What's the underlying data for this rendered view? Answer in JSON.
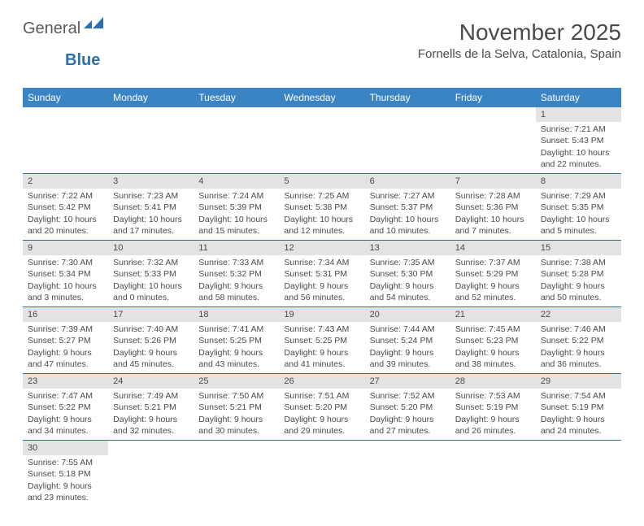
{
  "logo": {
    "text1": "General",
    "text2": "Blue"
  },
  "title": "November 2025",
  "subtitle": "Fornells de la Selva, Catalonia, Spain",
  "colors": {
    "header_bg": "#3b84c4",
    "header_text": "#ffffff",
    "border": "#2c6fb0",
    "daynum_bg": "#e3e3e3",
    "text": "#4a4a4a"
  },
  "weekdays": [
    "Sunday",
    "Monday",
    "Tuesday",
    "Wednesday",
    "Thursday",
    "Friday",
    "Saturday"
  ],
  "weeks": [
    [
      null,
      null,
      null,
      null,
      null,
      null,
      {
        "n": "1",
        "sr": "Sunrise: 7:21 AM",
        "ss": "Sunset: 5:43 PM",
        "dl": "Daylight: 10 hours and 22 minutes."
      }
    ],
    [
      {
        "n": "2",
        "sr": "Sunrise: 7:22 AM",
        "ss": "Sunset: 5:42 PM",
        "dl": "Daylight: 10 hours and 20 minutes."
      },
      {
        "n": "3",
        "sr": "Sunrise: 7:23 AM",
        "ss": "Sunset: 5:41 PM",
        "dl": "Daylight: 10 hours and 17 minutes."
      },
      {
        "n": "4",
        "sr": "Sunrise: 7:24 AM",
        "ss": "Sunset: 5:39 PM",
        "dl": "Daylight: 10 hours and 15 minutes."
      },
      {
        "n": "5",
        "sr": "Sunrise: 7:25 AM",
        "ss": "Sunset: 5:38 PM",
        "dl": "Daylight: 10 hours and 12 minutes."
      },
      {
        "n": "6",
        "sr": "Sunrise: 7:27 AM",
        "ss": "Sunset: 5:37 PM",
        "dl": "Daylight: 10 hours and 10 minutes."
      },
      {
        "n": "7",
        "sr": "Sunrise: 7:28 AM",
        "ss": "Sunset: 5:36 PM",
        "dl": "Daylight: 10 hours and 7 minutes."
      },
      {
        "n": "8",
        "sr": "Sunrise: 7:29 AM",
        "ss": "Sunset: 5:35 PM",
        "dl": "Daylight: 10 hours and 5 minutes."
      }
    ],
    [
      {
        "n": "9",
        "sr": "Sunrise: 7:30 AM",
        "ss": "Sunset: 5:34 PM",
        "dl": "Daylight: 10 hours and 3 minutes."
      },
      {
        "n": "10",
        "sr": "Sunrise: 7:32 AM",
        "ss": "Sunset: 5:33 PM",
        "dl": "Daylight: 10 hours and 0 minutes."
      },
      {
        "n": "11",
        "sr": "Sunrise: 7:33 AM",
        "ss": "Sunset: 5:32 PM",
        "dl": "Daylight: 9 hours and 58 minutes."
      },
      {
        "n": "12",
        "sr": "Sunrise: 7:34 AM",
        "ss": "Sunset: 5:31 PM",
        "dl": "Daylight: 9 hours and 56 minutes."
      },
      {
        "n": "13",
        "sr": "Sunrise: 7:35 AM",
        "ss": "Sunset: 5:30 PM",
        "dl": "Daylight: 9 hours and 54 minutes."
      },
      {
        "n": "14",
        "sr": "Sunrise: 7:37 AM",
        "ss": "Sunset: 5:29 PM",
        "dl": "Daylight: 9 hours and 52 minutes."
      },
      {
        "n": "15",
        "sr": "Sunrise: 7:38 AM",
        "ss": "Sunset: 5:28 PM",
        "dl": "Daylight: 9 hours and 50 minutes."
      }
    ],
    [
      {
        "n": "16",
        "sr": "Sunrise: 7:39 AM",
        "ss": "Sunset: 5:27 PM",
        "dl": "Daylight: 9 hours and 47 minutes."
      },
      {
        "n": "17",
        "sr": "Sunrise: 7:40 AM",
        "ss": "Sunset: 5:26 PM",
        "dl": "Daylight: 9 hours and 45 minutes."
      },
      {
        "n": "18",
        "sr": "Sunrise: 7:41 AM",
        "ss": "Sunset: 5:25 PM",
        "dl": "Daylight: 9 hours and 43 minutes."
      },
      {
        "n": "19",
        "sr": "Sunrise: 7:43 AM",
        "ss": "Sunset: 5:25 PM",
        "dl": "Daylight: 9 hours and 41 minutes."
      },
      {
        "n": "20",
        "sr": "Sunrise: 7:44 AM",
        "ss": "Sunset: 5:24 PM",
        "dl": "Daylight: 9 hours and 39 minutes."
      },
      {
        "n": "21",
        "sr": "Sunrise: 7:45 AM",
        "ss": "Sunset: 5:23 PM",
        "dl": "Daylight: 9 hours and 38 minutes."
      },
      {
        "n": "22",
        "sr": "Sunrise: 7:46 AM",
        "ss": "Sunset: 5:22 PM",
        "dl": "Daylight: 9 hours and 36 minutes."
      }
    ],
    [
      {
        "n": "23",
        "sr": "Sunrise: 7:47 AM",
        "ss": "Sunset: 5:22 PM",
        "dl": "Daylight: 9 hours and 34 minutes."
      },
      {
        "n": "24",
        "sr": "Sunrise: 7:49 AM",
        "ss": "Sunset: 5:21 PM",
        "dl": "Daylight: 9 hours and 32 minutes."
      },
      {
        "n": "25",
        "sr": "Sunrise: 7:50 AM",
        "ss": "Sunset: 5:21 PM",
        "dl": "Daylight: 9 hours and 30 minutes."
      },
      {
        "n": "26",
        "sr": "Sunrise: 7:51 AM",
        "ss": "Sunset: 5:20 PM",
        "dl": "Daylight: 9 hours and 29 minutes."
      },
      {
        "n": "27",
        "sr": "Sunrise: 7:52 AM",
        "ss": "Sunset: 5:20 PM",
        "dl": "Daylight: 9 hours and 27 minutes."
      },
      {
        "n": "28",
        "sr": "Sunrise: 7:53 AM",
        "ss": "Sunset: 5:19 PM",
        "dl": "Daylight: 9 hours and 26 minutes."
      },
      {
        "n": "29",
        "sr": "Sunrise: 7:54 AM",
        "ss": "Sunset: 5:19 PM",
        "dl": "Daylight: 9 hours and 24 minutes."
      }
    ],
    [
      {
        "n": "30",
        "sr": "Sunrise: 7:55 AM",
        "ss": "Sunset: 5:18 PM",
        "dl": "Daylight: 9 hours and 23 minutes."
      },
      null,
      null,
      null,
      null,
      null,
      null
    ]
  ]
}
